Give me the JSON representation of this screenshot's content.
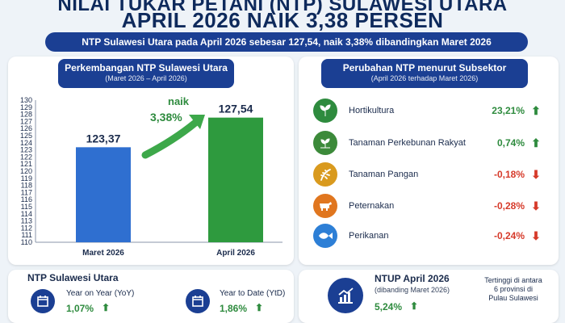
{
  "header": {
    "title_line1": "NILAI TUKAR PETANI (NTP) SULAWESI UTARA",
    "title_line2": "APRIL 2026 NAIK 3,38 PERSEN",
    "banner": "NTP Sulawesi Utara pada April 2026 sebesar 127,54, naik 3,38% dibandingkan Maret 2026"
  },
  "left_panel": {
    "title": "Perkembangan NTP Sulawesi Utara",
    "subtitle": "(Maret 2026 – April 2026)",
    "bar_labels": [
      "123,37",
      "127,54"
    ],
    "rise_label": "naik",
    "rise_value": "3,38%"
  },
  "chart_data": {
    "type": "bar",
    "categories": [
      "Maret 2026",
      "April 2026"
    ],
    "values": [
      123.37,
      127.54
    ],
    "ylim": [
      110,
      130
    ],
    "yticks": [
      "110",
      "111",
      "112",
      "113",
      "114",
      "115",
      "116",
      "117",
      "118",
      "119",
      "120",
      "121",
      "122",
      "123",
      "124",
      "125",
      "126",
      "127",
      "128",
      "129",
      "130"
    ],
    "colors": [
      "#2f6fd0",
      "#2e9a3e"
    ],
    "title": "Perkembangan NTP Sulawesi Utara"
  },
  "right_panel": {
    "title": "Perubahan NTP menurut Subsektor",
    "subtitle": "(April 2026 terhadap Maret 2026)",
    "items": [
      {
        "label": "Hortikultura",
        "value": "23,21%",
        "direction": "up",
        "icon": "plant-icon",
        "color": "#2e8b3e"
      },
      {
        "label": "Tanaman Perkebunan Rakyat",
        "value": "0,74%",
        "direction": "up",
        "icon": "seedling-icon",
        "color": "#2e8b3e"
      },
      {
        "label": "Tanaman Pangan",
        "value": "-0,18%",
        "direction": "down",
        "icon": "rice-icon",
        "color": "#d63a2a"
      },
      {
        "label": "Peternakan",
        "value": "-0,28%",
        "direction": "down",
        "icon": "cow-icon",
        "color": "#d63a2a"
      },
      {
        "label": "Perikanan",
        "value": "-0,24%",
        "direction": "down",
        "icon": "fish-icon",
        "color": "#d63a2a"
      }
    ]
  },
  "bottom_left": {
    "title": "NTP Sulawesi Utara",
    "yoy_label": "Year on Year (YoY)",
    "yoy_value": "1,07%",
    "ytd_label": "Year to Date (YtD)",
    "ytd_value": "1,86%"
  },
  "bottom_right": {
    "title": "NTUP April 2026",
    "subtitle": "(dibanding Maret 2026)",
    "value": "5,24%",
    "note_line1": "Tertinggi di antara",
    "note_line2": "6 provinsi di",
    "note_line3": "Pulau Sulawesi"
  }
}
